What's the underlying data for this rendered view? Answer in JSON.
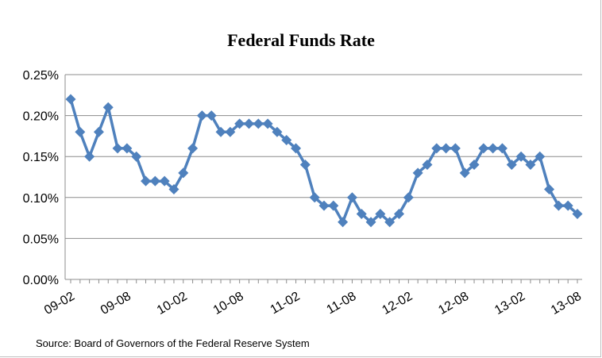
{
  "chart_data": {
    "type": "line",
    "title": "Federal Funds Rate",
    "xlabel": "",
    "ylabel": "",
    "ylim": [
      0,
      0.25
    ],
    "yticks": [
      "0.00%",
      "0.05%",
      "0.10%",
      "0.15%",
      "0.20%",
      "0.25%"
    ],
    "ytick_values": [
      0,
      0.05,
      0.1,
      0.15,
      0.2,
      0.25
    ],
    "x": [
      "09-02",
      "09-03",
      "09-04",
      "09-05",
      "09-06",
      "09-07",
      "09-08",
      "09-09",
      "09-10",
      "09-11",
      "09-12",
      "10-01",
      "10-02",
      "10-03",
      "10-04",
      "10-05",
      "10-06",
      "10-07",
      "10-08",
      "10-09",
      "10-10",
      "10-11",
      "10-12",
      "11-01",
      "11-02",
      "11-03",
      "11-04",
      "11-05",
      "11-06",
      "11-07",
      "11-08",
      "11-09",
      "11-10",
      "11-11",
      "11-12",
      "12-01",
      "12-02",
      "12-03",
      "12-04",
      "12-05",
      "12-06",
      "12-07",
      "12-08",
      "12-09",
      "12-10",
      "12-11",
      "12-12",
      "13-01",
      "13-02",
      "13-03",
      "13-04",
      "13-05",
      "13-06",
      "13-07",
      "13-08"
    ],
    "xtick_labels": [
      "09-02",
      "09-08",
      "10-02",
      "10-08",
      "11-02",
      "11-08",
      "12-02",
      "12-08",
      "13-02",
      "13-08"
    ],
    "xtick_indices": [
      0,
      6,
      12,
      18,
      24,
      30,
      36,
      42,
      48,
      54
    ],
    "grid": true,
    "legend": "none",
    "series": [
      {
        "color": "#4f81bd",
        "marker": "diamond",
        "values": [
          0.22,
          0.18,
          0.15,
          0.18,
          0.21,
          0.16,
          0.16,
          0.15,
          0.12,
          0.12,
          0.12,
          0.11,
          0.13,
          0.16,
          0.2,
          0.2,
          0.18,
          0.18,
          0.19,
          0.19,
          0.19,
          0.19,
          0.18,
          0.17,
          0.16,
          0.14,
          0.1,
          0.09,
          0.09,
          0.07,
          0.1,
          0.08,
          0.07,
          0.08,
          0.07,
          0.08,
          0.1,
          0.13,
          0.14,
          0.16,
          0.16,
          0.16,
          0.13,
          0.14,
          0.16,
          0.16,
          0.16,
          0.14,
          0.15,
          0.14,
          0.15,
          0.11,
          0.09,
          0.09,
          0.08
        ]
      }
    ]
  },
  "source": "Source: Board of Governors of  the Federal Reserve System"
}
